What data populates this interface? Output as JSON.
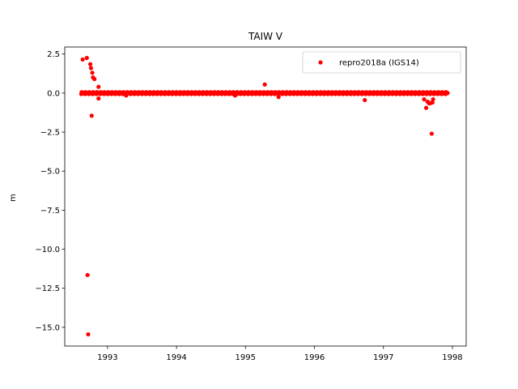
{
  "chart_data": {
    "type": "scatter",
    "title": "TAIW V",
    "xlabel": "",
    "ylabel": "m",
    "xlim": [
      1992.38,
      1998.2
    ],
    "ylim": [
      -16.2,
      2.95
    ],
    "xticks": [
      1993,
      1994,
      1995,
      1996,
      1997,
      1998
    ],
    "xtick_labels": [
      "1993",
      "1994",
      "1995",
      "1996",
      "1997",
      "1998"
    ],
    "yticks": [
      2.5,
      0.0,
      -2.5,
      -5.0,
      -7.5,
      -10.0,
      -12.5,
      -15.0
    ],
    "ytick_labels": [
      "2.5",
      "0.0",
      "−2.5",
      "−5.0",
      "−7.5",
      "−10.0",
      "−12.5",
      "−15.0"
    ],
    "grid": false,
    "legend_position": "top-right",
    "series": [
      {
        "name": "repro2018a (IGS14)",
        "color": "#ff0000",
        "marker": "circle",
        "baseline": {
          "x_start": 1992.62,
          "x_end": 1997.93,
          "x_step": 0.005,
          "y": 0.0
        },
        "points": [
          {
            "x": 1992.64,
            "y": 2.15
          },
          {
            "x": 1992.7,
            "y": 2.25
          },
          {
            "x": 1992.75,
            "y": 1.85
          },
          {
            "x": 1992.76,
            "y": 1.6
          },
          {
            "x": 1992.78,
            "y": 1.3
          },
          {
            "x": 1992.79,
            "y": 1.0
          },
          {
            "x": 1992.81,
            "y": 0.9
          },
          {
            "x": 1992.77,
            "y": -1.45
          },
          {
            "x": 1992.87,
            "y": 0.4
          },
          {
            "x": 1992.87,
            "y": -0.35
          },
          {
            "x": 1992.71,
            "y": -11.65
          },
          {
            "x": 1992.72,
            "y": -15.45
          },
          {
            "x": 1993.27,
            "y": -0.15
          },
          {
            "x": 1994.85,
            "y": -0.15
          },
          {
            "x": 1995.28,
            "y": 0.55
          },
          {
            "x": 1995.48,
            "y": -0.25
          },
          {
            "x": 1996.73,
            "y": -0.45
          },
          {
            "x": 1997.59,
            "y": -0.4
          },
          {
            "x": 1997.62,
            "y": -0.95
          },
          {
            "x": 1997.64,
            "y": -0.55
          },
          {
            "x": 1997.66,
            "y": -0.65
          },
          {
            "x": 1997.68,
            "y": -0.65
          },
          {
            "x": 1997.7,
            "y": -2.6
          },
          {
            "x": 1997.71,
            "y": -0.6
          },
          {
            "x": 1997.72,
            "y": -0.4
          }
        ]
      }
    ]
  }
}
